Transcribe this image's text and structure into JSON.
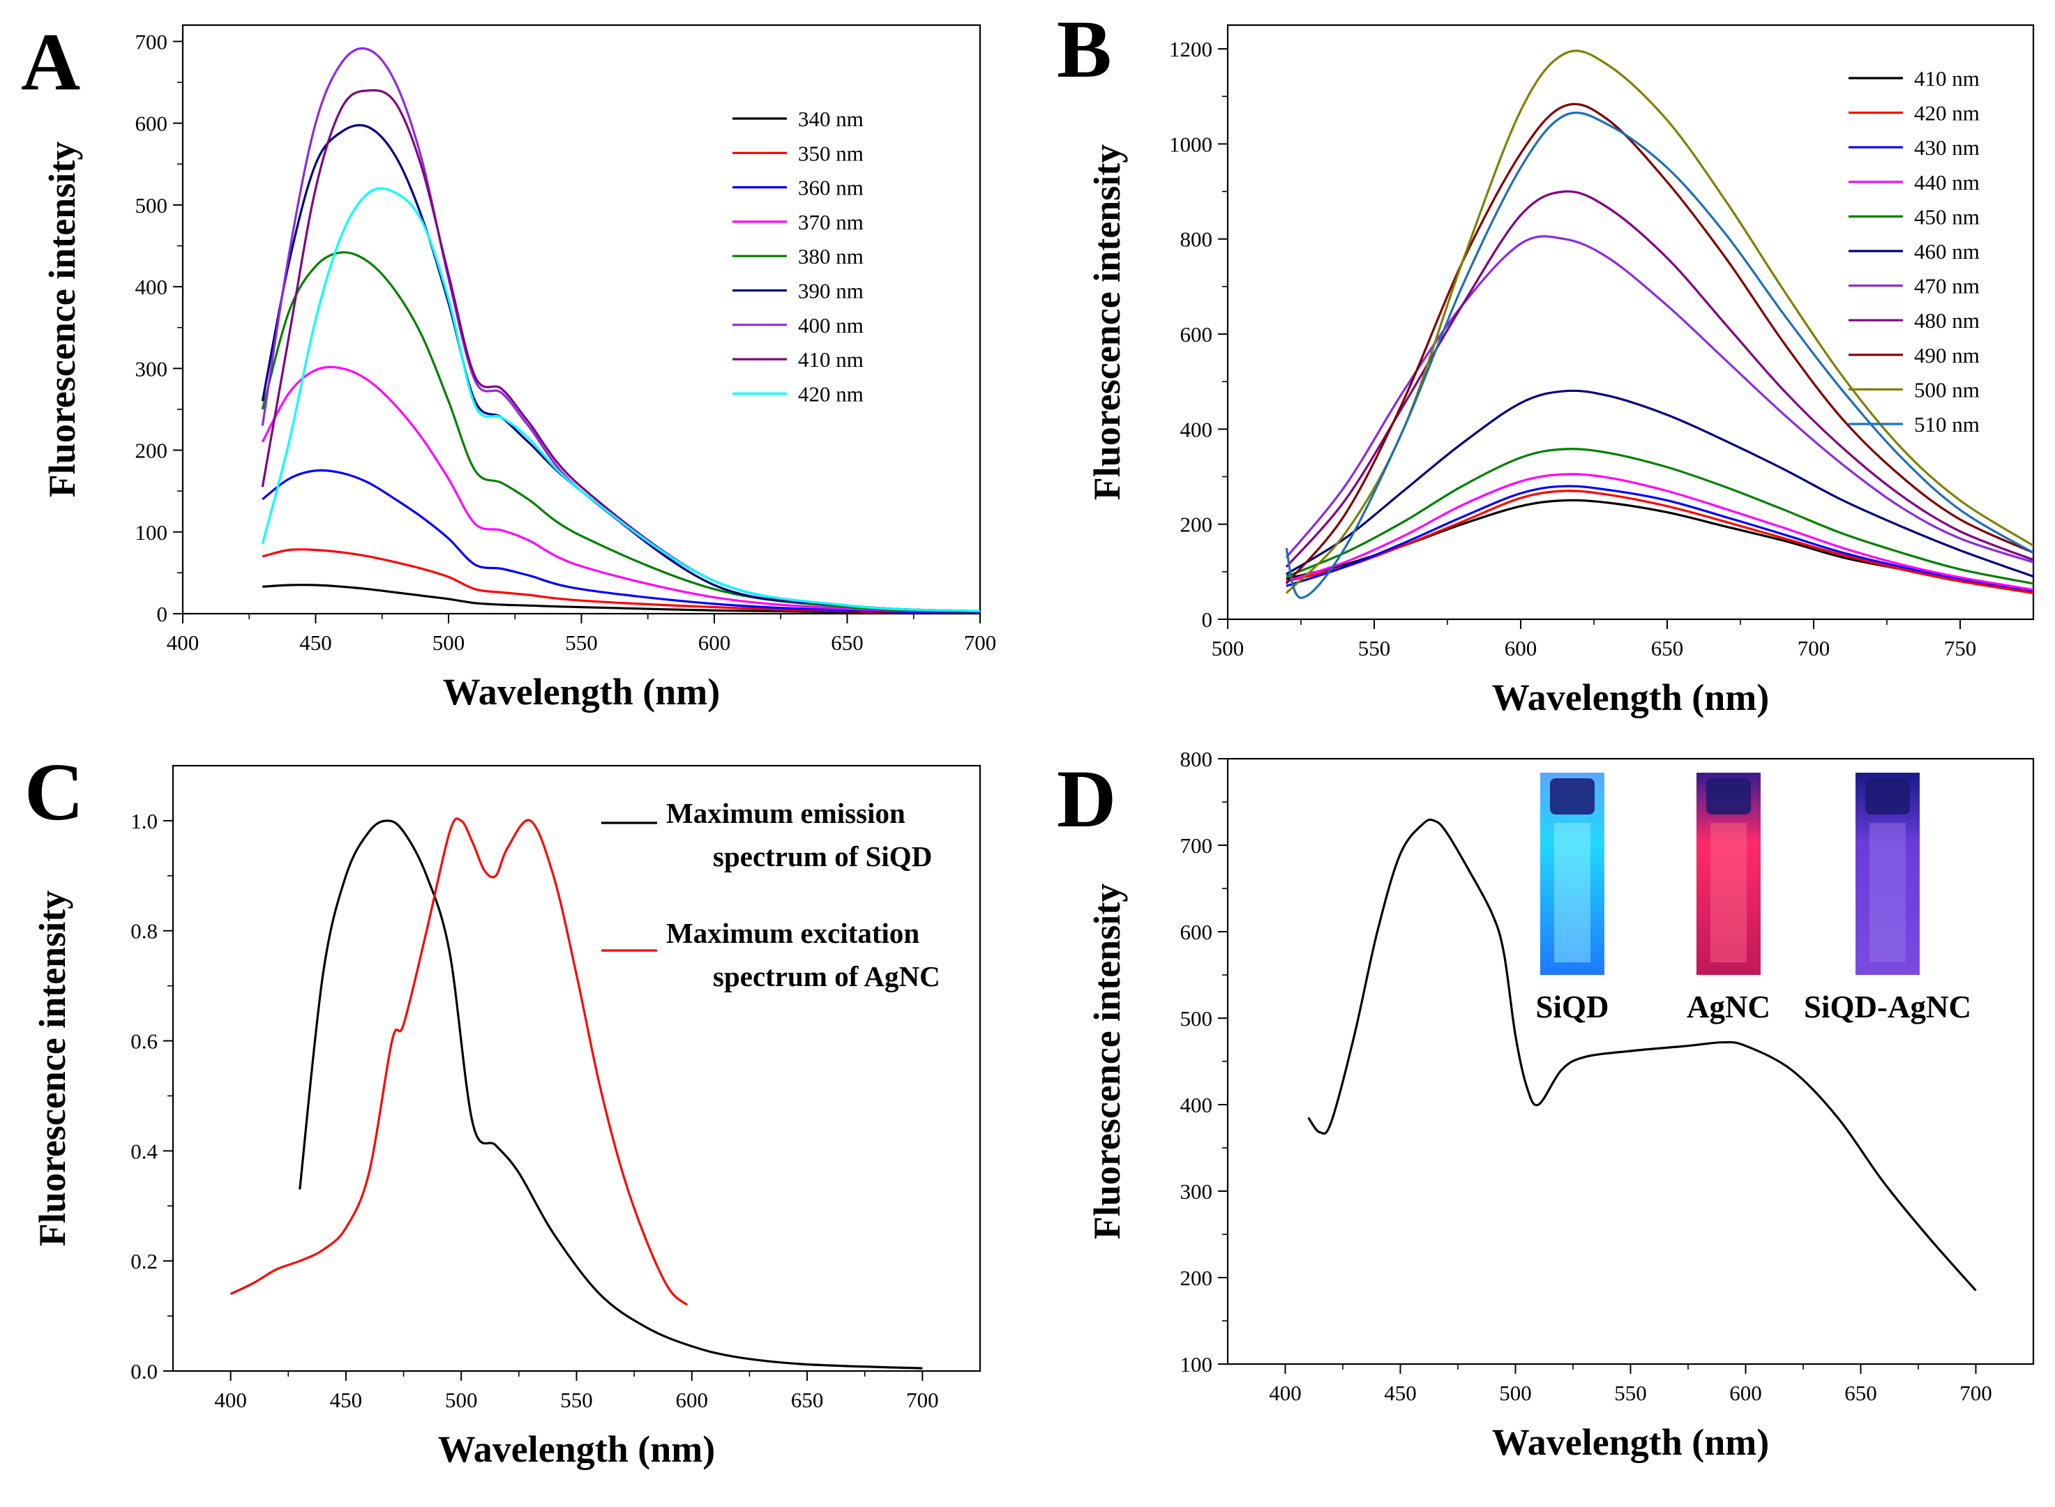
{
  "chart_data": [
    {
      "panel": "A",
      "type": "line",
      "xlabel": "Wavelength (nm)",
      "ylabel": "Fluorescence intensity",
      "xlim": [
        400,
        700
      ],
      "ylim": [
        0,
        720
      ],
      "xticks": [
        400,
        450,
        500,
        550,
        600,
        650,
        700
      ],
      "yticks": [
        0,
        100,
        200,
        300,
        400,
        500,
        600,
        700
      ],
      "legend_position": "top-right",
      "series": [
        {
          "name": "340 nm",
          "color": "#000000",
          "x": [
            430,
            440,
            450,
            460,
            470,
            480,
            490,
            500,
            510,
            520,
            530,
            550,
            600,
            650,
            700
          ],
          "values": [
            33,
            35,
            35,
            33,
            30,
            26,
            22,
            18,
            13,
            11,
            10,
            8,
            4,
            2,
            1
          ]
        },
        {
          "name": "350 nm",
          "color": "#ff0000",
          "x": [
            430,
            440,
            450,
            460,
            470,
            480,
            490,
            500,
            510,
            520,
            530,
            550,
            600,
            650,
            700
          ],
          "values": [
            70,
            78,
            78,
            75,
            70,
            63,
            55,
            45,
            30,
            26,
            23,
            16,
            8,
            3,
            1
          ]
        },
        {
          "name": "360 nm",
          "color": "#0000ff",
          "x": [
            430,
            440,
            450,
            460,
            470,
            480,
            490,
            500,
            510,
            520,
            530,
            550,
            600,
            650,
            700
          ],
          "values": [
            140,
            165,
            175,
            172,
            160,
            140,
            118,
            92,
            60,
            55,
            47,
            30,
            12,
            4,
            1
          ]
        },
        {
          "name": "370 nm",
          "color": "#ff00ff",
          "x": [
            430,
            440,
            450,
            460,
            470,
            480,
            490,
            500,
            510,
            520,
            530,
            550,
            600,
            650,
            700
          ],
          "values": [
            210,
            270,
            298,
            300,
            285,
            255,
            215,
            165,
            110,
            102,
            90,
            58,
            20,
            6,
            2
          ]
        },
        {
          "name": "380 nm",
          "color": "#008000",
          "x": [
            430,
            440,
            450,
            460,
            470,
            480,
            490,
            500,
            510,
            520,
            530,
            550,
            600,
            650,
            700
          ],
          "values": [
            250,
            370,
            425,
            442,
            430,
            395,
            340,
            260,
            175,
            160,
            140,
            95,
            30,
            8,
            2
          ]
        },
        {
          "name": "390 nm",
          "color": "#000080",
          "x": [
            430,
            440,
            450,
            460,
            470,
            480,
            490,
            500,
            510,
            520,
            530,
            550,
            600,
            650,
            700
          ],
          "values": [
            260,
            430,
            550,
            590,
            595,
            560,
            485,
            380,
            260,
            240,
            210,
            150,
            35,
            10,
            2
          ]
        },
        {
          "name": "400 nm",
          "color": "#8a2be2",
          "x": [
            430,
            440,
            450,
            460,
            470,
            480,
            490,
            500,
            510,
            520,
            530,
            550,
            600,
            650,
            700
          ],
          "values": [
            230,
            440,
            600,
            675,
            690,
            650,
            555,
            410,
            285,
            270,
            230,
            150,
            40,
            10,
            3
          ]
        },
        {
          "name": "410 nm",
          "color": "#800080",
          "x": [
            430,
            440,
            450,
            460,
            470,
            480,
            490,
            500,
            510,
            520,
            530,
            550,
            600,
            650,
            700
          ],
          "values": [
            155,
            340,
            520,
            620,
            640,
            625,
            545,
            415,
            290,
            275,
            235,
            155,
            40,
            10,
            3
          ]
        },
        {
          "name": "420 nm",
          "color": "#00ffff",
          "x": [
            430,
            440,
            450,
            460,
            470,
            480,
            490,
            500,
            510,
            520,
            530,
            550,
            600,
            650,
            700
          ],
          "values": [
            85,
            210,
            360,
            465,
            515,
            515,
            480,
            385,
            255,
            240,
            215,
            150,
            40,
            10,
            3
          ]
        }
      ]
    },
    {
      "panel": "B",
      "type": "line",
      "xlabel": "Wavelength (nm)",
      "ylabel": "Fluorescence intensity",
      "xlim": [
        500,
        775
      ],
      "ylim": [
        0,
        1250
      ],
      "xticks": [
        500,
        550,
        600,
        650,
        700,
        750
      ],
      "yticks": [
        0,
        200,
        400,
        600,
        800,
        1000,
        1200
      ],
      "legend_position": "top-right",
      "series": [
        {
          "name": "410 nm",
          "color": "#000000",
          "x": [
            520,
            540,
            560,
            580,
            600,
            615,
            630,
            650,
            670,
            690,
            710,
            730,
            750,
            775
          ],
          "values": [
            85,
            115,
            155,
            200,
            238,
            250,
            245,
            225,
            195,
            165,
            130,
            105,
            80,
            60
          ]
        },
        {
          "name": "420 nm",
          "color": "#ff0000",
          "x": [
            520,
            540,
            560,
            580,
            600,
            615,
            630,
            650,
            670,
            690,
            710,
            730,
            750,
            775
          ],
          "values": [
            80,
            110,
            155,
            205,
            255,
            270,
            262,
            238,
            205,
            170,
            135,
            105,
            80,
            55
          ]
        },
        {
          "name": "430 nm",
          "color": "#0000ff",
          "x": [
            520,
            540,
            560,
            580,
            600,
            615,
            630,
            650,
            670,
            690,
            710,
            730,
            750,
            775
          ],
          "values": [
            70,
            110,
            160,
            215,
            265,
            280,
            272,
            250,
            215,
            178,
            140,
            110,
            85,
            60
          ]
        },
        {
          "name": "440 nm",
          "color": "#ff00ff",
          "x": [
            520,
            540,
            560,
            580,
            600,
            615,
            630,
            650,
            670,
            690,
            710,
            730,
            750,
            775
          ],
          "values": [
            80,
            120,
            175,
            240,
            290,
            305,
            298,
            270,
            232,
            192,
            150,
            115,
            88,
            62
          ]
        },
        {
          "name": "450 nm",
          "color": "#008000",
          "x": [
            520,
            540,
            560,
            580,
            600,
            615,
            630,
            650,
            670,
            690,
            710,
            730,
            750,
            775
          ],
          "values": [
            90,
            140,
            205,
            280,
            340,
            358,
            350,
            320,
            278,
            230,
            180,
            140,
            105,
            75
          ]
        },
        {
          "name": "460 nm",
          "color": "#000080",
          "x": [
            520,
            540,
            560,
            580,
            600,
            615,
            630,
            650,
            670,
            690,
            710,
            730,
            750,
            775
          ],
          "values": [
            95,
            170,
            270,
            370,
            455,
            480,
            470,
            430,
            375,
            315,
            250,
            195,
            145,
            90
          ]
        },
        {
          "name": "470 nm",
          "color": "#8a2be2",
          "x": [
            520,
            540,
            560,
            580,
            600,
            615,
            630,
            650,
            670,
            690,
            710,
            730,
            750,
            775
          ],
          "values": [
            130,
            280,
            480,
            660,
            790,
            800,
            760,
            660,
            545,
            430,
            325,
            235,
            170,
            120
          ]
        },
        {
          "name": "480 nm",
          "color": "#800080",
          "x": [
            520,
            540,
            560,
            580,
            600,
            615,
            630,
            650,
            670,
            690,
            710,
            730,
            750,
            775
          ],
          "values": [
            110,
            250,
            450,
            660,
            850,
            900,
            865,
            760,
            620,
            480,
            360,
            260,
            185,
            125
          ]
        },
        {
          "name": "490 nm",
          "color": "#800000",
          "x": [
            520,
            540,
            560,
            580,
            600,
            615,
            630,
            650,
            670,
            690,
            710,
            730,
            750,
            775
          ],
          "values": [
            75,
            220,
            460,
            750,
            980,
            1080,
            1050,
            920,
            760,
            580,
            420,
            300,
            210,
            140
          ]
        },
        {
          "name": "500 nm",
          "color": "#808000",
          "x": [
            520,
            540,
            560,
            580,
            600,
            615,
            630,
            650,
            670,
            690,
            710,
            730,
            750,
            775
          ],
          "values": [
            55,
            180,
            400,
            750,
            1070,
            1190,
            1165,
            1050,
            880,
            690,
            510,
            360,
            250,
            155
          ]
        },
        {
          "name": "510 nm",
          "color": "#1f6fb4",
          "x": [
            520,
            525,
            540,
            560,
            580,
            600,
            615,
            630,
            650,
            670,
            690,
            710,
            730,
            750,
            775
          ],
          "values": [
            150,
            45,
            150,
            400,
            700,
            950,
            1060,
            1040,
            950,
            810,
            640,
            480,
            340,
            230,
            140
          ]
        }
      ]
    },
    {
      "panel": "C",
      "type": "line",
      "xlabel": "Wavelength (nm)",
      "ylabel": "Fluorescence intensity",
      "xlim": [
        375,
        725
      ],
      "ylim": [
        0,
        1.1
      ],
      "xticks": [
        400,
        450,
        500,
        550,
        600,
        650,
        700
      ],
      "yticks": [
        0.0,
        0.2,
        0.4,
        0.6,
        0.8,
        1.0
      ],
      "legend_position": "top-right",
      "series": [
        {
          "name": "Maximum emission spectrum of SiQD",
          "color": "#000000",
          "x": [
            430,
            440,
            450,
            460,
            468,
            475,
            485,
            495,
            505,
            515,
            525,
            540,
            560,
            580,
            600,
            620,
            650,
            700
          ],
          "values": [
            0.33,
            0.72,
            0.9,
            0.98,
            1.0,
            0.98,
            0.9,
            0.76,
            0.45,
            0.41,
            0.36,
            0.25,
            0.14,
            0.08,
            0.045,
            0.025,
            0.012,
            0.005
          ]
        },
        {
          "name": "Maximum excitation spectrum of AgNC",
          "color": "#ff0000",
          "x": [
            400,
            410,
            420,
            430,
            440,
            450,
            460,
            470,
            475,
            485,
            495,
            500,
            505,
            510,
            515,
            520,
            530,
            540,
            550,
            560,
            570,
            580,
            590,
            598
          ],
          "values": [
            0.14,
            0.16,
            0.185,
            0.2,
            0.22,
            0.26,
            0.36,
            0.6,
            0.63,
            0.8,
            0.98,
            1.0,
            0.96,
            0.91,
            0.9,
            0.95,
            1.0,
            0.9,
            0.72,
            0.52,
            0.36,
            0.24,
            0.15,
            0.12
          ]
        }
      ]
    },
    {
      "panel": "D",
      "type": "line",
      "xlabel": "Wavelength (nm)",
      "ylabel": "Fluorescence intensity",
      "xlim": [
        375,
        725
      ],
      "ylim": [
        100,
        800
      ],
      "xticks": [
        400,
        450,
        500,
        550,
        600,
        650,
        700
      ],
      "yticks": [
        100,
        200,
        300,
        400,
        500,
        600,
        700,
        800
      ],
      "inset_labels": [
        "SiQD",
        "AgNC",
        "SiQD-AgNC"
      ],
      "series": [
        {
          "name": "SiQD-AgNC",
          "color": "#000000",
          "x": [
            410,
            415,
            420,
            430,
            440,
            450,
            460,
            465,
            470,
            480,
            490,
            495,
            500,
            505,
            510,
            520,
            530,
            550,
            575,
            590,
            600,
            620,
            640,
            660,
            680,
            700
          ],
          "values": [
            385,
            368,
            380,
            480,
            600,
            690,
            725,
            728,
            715,
            670,
            620,
            575,
            480,
            420,
            400,
            440,
            455,
            462,
            468,
            472,
            468,
            440,
            385,
            310,
            245,
            185
          ]
        }
      ]
    }
  ]
}
